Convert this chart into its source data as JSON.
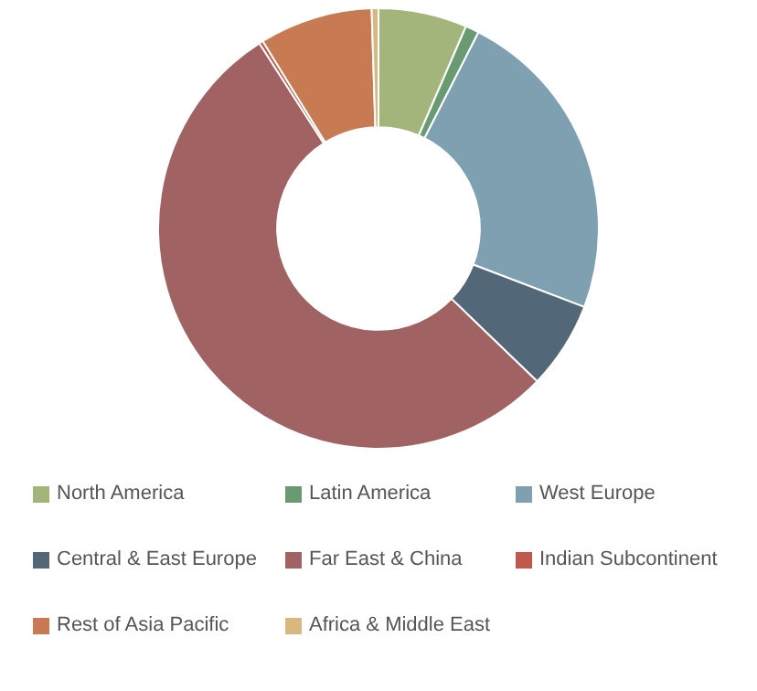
{
  "chart_data": {
    "type": "donut",
    "categories": [
      "North America",
      "Latin America",
      "West Europe",
      "Central & East Europe",
      "Far East & China",
      "Indian Subcontinent",
      "Rest of Asia Pacific",
      "Africa & Middle East"
    ],
    "values": [
      6.5,
      1,
      23.3,
      6.4,
      53.7,
      0.3,
      8.3,
      0.5
    ],
    "colors": [
      "#a3b57a",
      "#6a9a72",
      "#7fa0b0",
      "#526878",
      "#a06262",
      "#c0584c",
      "#c87a52",
      "#d8b880"
    ],
    "legend": "bottom"
  }
}
